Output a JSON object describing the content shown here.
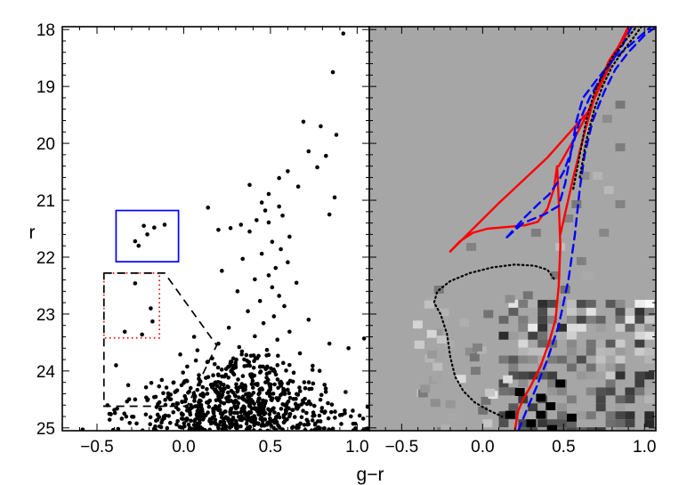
{
  "chart_data": [
    {
      "panel": "left",
      "type": "scatter",
      "xlabel": "g−r",
      "ylabel": "r",
      "xlim": [
        -0.7,
        1.07
      ],
      "ylim": [
        25.05,
        17.95
      ],
      "y_inverted": true,
      "xticks": [
        "−0.5",
        "0.0",
        "0.5",
        "1.0"
      ],
      "yticks": [
        "18",
        "19",
        "20",
        "21",
        "22",
        "23",
        "24",
        "25"
      ],
      "point_color": "#000000",
      "bright_points": [
        {
          "x": 0.92,
          "y": 18.07
        },
        {
          "x": 0.86,
          "y": 18.75
        },
        {
          "x": 0.69,
          "y": 19.62
        },
        {
          "x": 0.79,
          "y": 19.7
        },
        {
          "x": 0.88,
          "y": 19.85
        },
        {
          "x": 0.72,
          "y": 20.14
        },
        {
          "x": 0.82,
          "y": 20.22
        },
        {
          "x": 0.77,
          "y": 20.42
        },
        {
          "x": 0.6,
          "y": 20.49
        },
        {
          "x": 0.55,
          "y": 20.61
        },
        {
          "x": 0.38,
          "y": 20.73
        },
        {
          "x": 0.66,
          "y": 20.76
        },
        {
          "x": 0.49,
          "y": 20.89
        },
        {
          "x": 0.87,
          "y": 20.95
        },
        {
          "x": 0.45,
          "y": 21.04
        },
        {
          "x": 0.55,
          "y": 21.11
        },
        {
          "x": 0.47,
          "y": 21.18
        },
        {
          "x": 0.14,
          "y": 21.13
        },
        {
          "x": 0.84,
          "y": 21.25
        },
        {
          "x": 0.57,
          "y": 21.27
        },
        {
          "x": 0.42,
          "y": 21.35
        },
        {
          "x": 0.49,
          "y": 21.39
        },
        {
          "x": 0.33,
          "y": 21.43
        },
        {
          "x": 0.27,
          "y": 21.49
        },
        {
          "x": 0.2,
          "y": 21.52
        },
        {
          "x": 0.38,
          "y": 21.55
        },
        {
          "x": 0.61,
          "y": 21.64
        },
        {
          "x": 0.51,
          "y": 21.73
        },
        {
          "x": 0.56,
          "y": 21.86
        },
        {
          "x": 0.45,
          "y": 21.94
        },
        {
          "x": 0.34,
          "y": 22.03
        },
        {
          "x": 0.6,
          "y": 22.09
        },
        {
          "x": 0.53,
          "y": 22.19
        },
        {
          "x": 0.22,
          "y": 22.24
        },
        {
          "x": 0.49,
          "y": 22.32
        },
        {
          "x": 0.41,
          "y": 22.39
        },
        {
          "x": 0.65,
          "y": 22.45
        },
        {
          "x": 0.51,
          "y": 22.53
        },
        {
          "x": 0.31,
          "y": 22.6
        },
        {
          "x": 0.55,
          "y": 22.68
        },
        {
          "x": 0.44,
          "y": 22.77
        },
        {
          "x": 0.58,
          "y": 22.86
        },
        {
          "x": 0.37,
          "y": 22.95
        },
        {
          "x": 0.52,
          "y": 23.04
        },
        {
          "x": 0.72,
          "y": 23.1
        },
        {
          "x": 0.46,
          "y": 23.16
        },
        {
          "x": 0.26,
          "y": 23.24
        },
        {
          "x": 0.61,
          "y": 23.31
        },
        {
          "x": 0.41,
          "y": 23.39
        },
        {
          "x": 0.54,
          "y": 23.45
        },
        {
          "x": 0.84,
          "y": 23.52
        },
        {
          "x": 0.32,
          "y": 23.58
        },
        {
          "x": 0.48,
          "y": 23.63
        },
        {
          "x": 0.67,
          "y": 23.69
        },
        {
          "x": 0.06,
          "y": 23.4
        },
        {
          "x": 0.2,
          "y": 23.52
        },
        {
          "x": 1.04,
          "y": 23.43
        },
        {
          "x": 0.95,
          "y": 23.6
        },
        {
          "x": -0.02,
          "y": 23.71
        }
      ],
      "mainsequence_cloud": {
        "seed": 7,
        "count": 720,
        "x_center": 0.35,
        "x_spread": 0.3,
        "y_min": 23.6,
        "y_max": 25.05
      },
      "regions": [
        {
          "label": "blue box",
          "color": "#0000ff",
          "style": "solid",
          "x": [
            -0.39,
            -0.03
          ],
          "y": [
            21.18,
            22.08
          ]
        },
        {
          "label": "red box",
          "color": "#ff0000",
          "style": "dotted",
          "x": [
            -0.46,
            -0.14
          ],
          "y": [
            22.28,
            23.42
          ]
        },
        {
          "label": "black outline",
          "color": "#000000",
          "style": "dashed",
          "outline": [
            [
              -0.46,
              22.28
            ],
            [
              -0.11,
              22.28
            ],
            [
              0.19,
              23.55
            ],
            [
              0.02,
              24.62
            ],
            [
              -0.46,
              24.62
            ],
            [
              -0.46,
              22.28
            ]
          ]
        }
      ],
      "blue_box_points": [
        {
          "x": -0.23,
          "y": 21.45
        },
        {
          "x": -0.17,
          "y": 21.48
        },
        {
          "x": -0.11,
          "y": 21.43
        },
        {
          "x": -0.21,
          "y": 21.6
        },
        {
          "x": -0.28,
          "y": 21.72
        },
        {
          "x": -0.26,
          "y": 21.8
        }
      ],
      "red_box_points": [
        {
          "x": -0.28,
          "y": 22.46
        },
        {
          "x": -0.19,
          "y": 22.9
        },
        {
          "x": -0.18,
          "y": 23.13
        },
        {
          "x": -0.34,
          "y": 23.31
        },
        {
          "x": -0.24,
          "y": 23.36
        }
      ],
      "black_outline_points": [
        {
          "x": -0.39,
          "y": 23.9
        },
        {
          "x": -0.32,
          "y": 24.25
        },
        {
          "x": -0.28,
          "y": 24.5
        },
        {
          "x": -0.09,
          "y": 24.46
        },
        {
          "x": -0.14,
          "y": 24.55
        },
        {
          "x": -0.05,
          "y": 24.37
        },
        {
          "x": -0.01,
          "y": 24.54
        },
        {
          "x": 0.04,
          "y": 24.3
        }
      ]
    },
    {
      "panel": "right",
      "type": "heatmap",
      "xlabel": "g−r",
      "xlim": [
        -0.7,
        1.07
      ],
      "ylim": [
        25.05,
        17.95
      ],
      "y_inverted": true,
      "xticks": [
        "−0.5",
        "0.0",
        "0.5",
        "1.0"
      ],
      "background_color": "#a6a6a6",
      "hess_pixels": [
        {
          "x": 0.74,
          "y": 19.5,
          "g": 140
        },
        {
          "x": 0.82,
          "y": 19.25,
          "g": 120
        },
        {
          "x": 0.6,
          "y": 20.5,
          "g": 140
        },
        {
          "x": 0.68,
          "y": 20.5,
          "g": 180
        },
        {
          "x": 0.55,
          "y": 21.0,
          "g": 120
        },
        {
          "x": 0.82,
          "y": 21.0,
          "g": 130
        },
        {
          "x": 0.5,
          "y": 21.25,
          "g": 130
        },
        {
          "x": 0.75,
          "y": 20.75,
          "g": 185
        },
        {
          "x": 0.82,
          "y": 20.0,
          "g": 125
        },
        {
          "x": 0.72,
          "y": 21.5,
          "g": 135
        },
        {
          "x": 0.58,
          "y": 22.0,
          "g": 128
        },
        {
          "x": 0.45,
          "y": 21.75,
          "g": 190
        },
        {
          "x": -0.1,
          "y": 21.75,
          "g": 130
        },
        {
          "x": 0.3,
          "y": 21.5,
          "g": 125
        },
        {
          "x": 0.62,
          "y": 22.25,
          "g": 170
        },
        {
          "x": 0.42,
          "y": 22.25,
          "g": 120
        },
        {
          "x": -0.3,
          "y": 22.5,
          "g": 120
        },
        {
          "x": 0.48,
          "y": 22.5,
          "g": 110
        },
        {
          "x": 0.25,
          "y": 22.6,
          "g": 115
        }
      ],
      "hess_grid": {
        "seed": 3,
        "x0": 0.1,
        "x1": 1.05,
        "y0": 22.75,
        "y1": 25.05,
        "cell_w": 0.06,
        "cell_h": 0.14
      },
      "black_cells": [
        {
          "x": 0.33,
          "y": 24.4
        },
        {
          "x": 0.39,
          "y": 24.55
        },
        {
          "x": 0.33,
          "y": 24.7
        },
        {
          "x": 0.27,
          "y": 24.85
        },
        {
          "x": 0.4,
          "y": 24.95
        },
        {
          "x": 0.2,
          "y": 24.3
        },
        {
          "x": 0.45,
          "y": 24.15
        },
        {
          "x": 0.14,
          "y": 24.7
        },
        {
          "x": 0.52,
          "y": 24.75
        }
      ],
      "series": [
        {
          "type": "line",
          "color": "#ff0000",
          "style": "solid",
          "x": [
            -0.2,
            -0.14,
            -0.06,
            0.03,
            0.15,
            0.26,
            0.34,
            0.4,
            0.44,
            0.46,
            0.47,
            0.48,
            0.47,
            0.45,
            0.41,
            0.36,
            0.3,
            0.25,
            0.22,
            0.21,
            0.2
          ],
          "y": [
            21.9,
            21.72,
            21.57,
            21.5,
            21.47,
            21.44,
            21.38,
            21.15,
            20.8,
            20.4,
            21.0,
            21.8,
            22.5,
            23.1,
            23.5,
            23.9,
            24.25,
            24.5,
            24.7,
            24.85,
            25.05
          ]
        },
        {
          "type": "line",
          "color": "#ff0000",
          "style": "solid",
          "x": [
            -0.2,
            0.1,
            0.4,
            0.65,
            0.9
          ],
          "y": [
            21.9,
            21.05,
            20.25,
            19.45,
            17.95
          ]
        },
        {
          "type": "line",
          "color": "#ff0000",
          "style": "solid",
          "x": [
            0.47,
            0.57,
            0.67,
            0.77,
            0.9
          ],
          "y": [
            20.4,
            19.9,
            19.35,
            18.7,
            17.95
          ]
        },
        {
          "type": "line",
          "color": "#ff0000",
          "style": "solid",
          "x": [
            0.48,
            0.56,
            0.63,
            0.7,
            0.78,
            0.92
          ],
          "y": [
            21.6,
            20.6,
            19.8,
            19.1,
            18.55,
            17.95
          ]
        },
        {
          "type": "line",
          "color": "#0000ff",
          "style": "dashed",
          "x": [
            0.15,
            0.25,
            0.38,
            0.47,
            0.51,
            0.55,
            0.58,
            0.62,
            0.7,
            0.8,
            0.92,
            1.04
          ],
          "y": [
            21.65,
            21.4,
            21.25,
            21.1,
            20.7,
            20.1,
            19.6,
            19.2,
            18.9,
            18.55,
            18.25,
            17.95
          ]
        },
        {
          "type": "line",
          "color": "#0000ff",
          "style": "dashed",
          "x": [
            0.15,
            0.26,
            0.35,
            0.41,
            0.46,
            0.5,
            0.54,
            0.57,
            0.6,
            0.66,
            0.73,
            0.8,
            0.86,
            0.92
          ],
          "y": [
            21.65,
            21.3,
            21.05,
            20.9,
            20.7,
            20.5,
            20.2,
            19.9,
            19.6,
            19.2,
            18.85,
            18.55,
            18.3,
            17.95
          ]
        },
        {
          "type": "line",
          "color": "#0000ff",
          "style": "dashed",
          "x": [
            0.22,
            0.27,
            0.33,
            0.4,
            0.47,
            0.53,
            0.57,
            0.6,
            0.63,
            0.68,
            0.75,
            0.82,
            0.9,
            1.0,
            1.07
          ],
          "y": [
            25.05,
            24.7,
            24.3,
            23.8,
            23.2,
            22.4,
            21.6,
            20.8,
            20.2,
            19.6,
            19.1,
            18.7,
            18.4,
            18.1,
            17.95
          ]
        },
        {
          "type": "line",
          "color": "#000000",
          "style": "dotted",
          "x": [
            0.56,
            0.6,
            0.64,
            0.69,
            0.75,
            0.81,
            0.88,
            0.95
          ],
          "y": [
            20.8,
            20.2,
            19.6,
            19.1,
            18.75,
            18.45,
            18.2,
            17.95
          ]
        },
        {
          "type": "line",
          "color": "#000000",
          "style": "dotted",
          "x": [
            0.6,
            0.64,
            0.69,
            0.74,
            0.8,
            0.86,
            0.93,
            0.98
          ],
          "y": [
            20.6,
            19.95,
            19.4,
            19.0,
            18.65,
            18.4,
            18.15,
            17.95
          ]
        },
        {
          "type": "line",
          "color": "#000000",
          "style": "dotted",
          "x": [
            0.44,
            0.4,
            0.32,
            0.2,
            0.06,
            -0.08,
            -0.2,
            -0.28,
            -0.3,
            -0.26,
            -0.22,
            -0.2,
            -0.17,
            -0.12,
            -0.05,
            0.03,
            0.12
          ],
          "y": [
            22.38,
            22.22,
            22.15,
            22.13,
            22.18,
            22.28,
            22.42,
            22.6,
            22.8,
            23.0,
            23.35,
            23.75,
            24.1,
            24.35,
            24.55,
            24.68,
            24.8
          ]
        }
      ]
    }
  ]
}
